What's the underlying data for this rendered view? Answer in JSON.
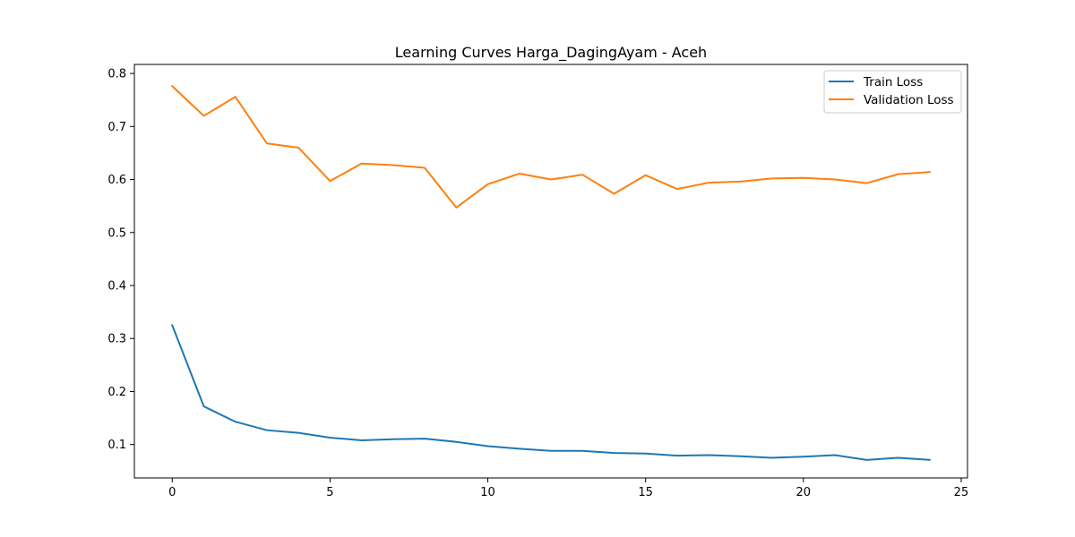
{
  "chart_data": {
    "type": "line",
    "title": "Learning Curves Harga_DagingAyam - Aceh",
    "xlabel": "",
    "ylabel": "",
    "xlim": [
      -1.2,
      25.2
    ],
    "ylim": [
      0.037,
      0.817
    ],
    "x_ticks": [
      0,
      5,
      10,
      15,
      20,
      25
    ],
    "y_ticks": [
      0.1,
      0.2,
      0.3,
      0.4,
      0.5,
      0.6,
      0.7,
      0.8
    ],
    "x_tick_labels": [
      "0",
      "5",
      "10",
      "15",
      "20",
      "25"
    ],
    "y_tick_labels": [
      "0.1",
      "0.2",
      "0.3",
      "0.4",
      "0.5",
      "0.6",
      "0.7",
      "0.8"
    ],
    "legend_position": "top-right",
    "grid": false,
    "x": [
      0,
      1,
      2,
      3,
      4,
      5,
      6,
      7,
      8,
      9,
      10,
      11,
      12,
      13,
      14,
      15,
      16,
      17,
      18,
      19,
      20,
      21,
      22,
      23,
      24
    ],
    "series": [
      {
        "name": "Train Loss",
        "color": "#1f77b4",
        "values": [
          0.325,
          0.172,
          0.143,
          0.127,
          0.122,
          0.113,
          0.108,
          0.11,
          0.111,
          0.105,
          0.097,
          0.092,
          0.088,
          0.088,
          0.084,
          0.083,
          0.079,
          0.08,
          0.078,
          0.075,
          0.077,
          0.08,
          0.071,
          0.075,
          0.071
        ]
      },
      {
        "name": "Validation Loss",
        "color": "#ff7f0e",
        "values": [
          0.776,
          0.72,
          0.756,
          0.668,
          0.66,
          0.597,
          0.63,
          0.627,
          0.622,
          0.547,
          0.591,
          0.611,
          0.6,
          0.609,
          0.573,
          0.608,
          0.582,
          0.594,
          0.596,
          0.602,
          0.603,
          0.6,
          0.593,
          0.61,
          0.614
        ]
      }
    ]
  }
}
